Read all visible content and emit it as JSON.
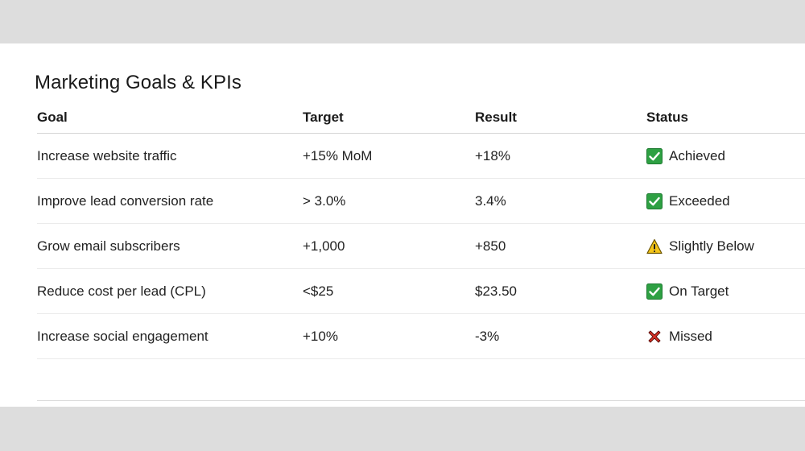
{
  "title": "Marketing Goals & KPIs",
  "columns": {
    "goal": "Goal",
    "target": "Target",
    "result": "Result",
    "status": "Status"
  },
  "rows": [
    {
      "goal": "Increase website traffic",
      "target": "+15% MoM",
      "result": "+18%",
      "status": "Achieved",
      "status_icon": "check-icon"
    },
    {
      "goal": "Improve lead conversion rate",
      "target": "> 3.0%",
      "result": "3.4%",
      "status": "Exceeded",
      "status_icon": "check-icon"
    },
    {
      "goal": "Grow email subscribers",
      "target": "+1,000",
      "result": "+850",
      "status": "Slightly Below",
      "status_icon": "warning-icon"
    },
    {
      "goal": "Reduce cost per lead (CPL)",
      "target": "<$25",
      "result": "$23.50",
      "status": "On Target",
      "status_icon": "check-icon"
    },
    {
      "goal": "Increase social engagement",
      "target": "+10%",
      "result": "-3%",
      "status": "Missed",
      "status_icon": "cross-icon"
    }
  ],
  "colors": {
    "check": "#2ea043",
    "warning": "#f5c518",
    "cross": "#d93025",
    "background": "#dddddd",
    "card": "#ffffff"
  }
}
